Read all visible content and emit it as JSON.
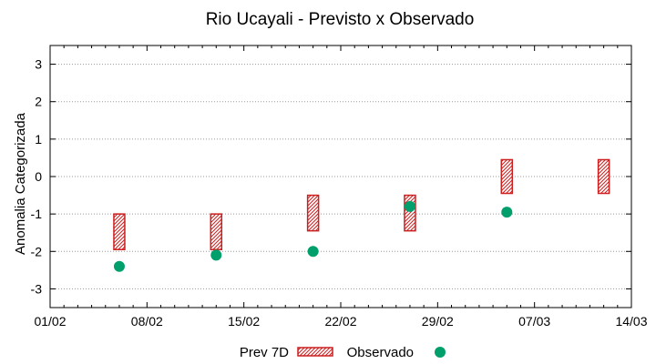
{
  "chart_data": {
    "type": "scatter",
    "title": "Rio Ucayali - Previsto x Observado",
    "xlabel": "",
    "ylabel": "Anomalia Categorizada",
    "x_ticks": [
      "01/02",
      "08/02",
      "15/02",
      "22/02",
      "29/02",
      "07/03",
      "14/03"
    ],
    "x_tick_days": [
      0,
      7,
      14,
      21,
      28,
      35,
      42
    ],
    "xlim_days": [
      0,
      42
    ],
    "y_ticks": [
      "3",
      "2",
      "1",
      "0",
      "-1",
      "-2",
      "-3"
    ],
    "y_tick_values": [
      3,
      2,
      1,
      0,
      -1,
      -2,
      -3
    ],
    "ylim": [
      -3.5,
      3.5
    ],
    "grid": true,
    "legend_position": "bottom-center",
    "series": [
      {
        "name": "Prev 7D",
        "kind": "range",
        "color": "#cc1f1f",
        "points": [
          {
            "x": 5,
            "low": -1.95,
            "high": -1.0
          },
          {
            "x": 12,
            "low": -1.95,
            "high": -1.0
          },
          {
            "x": 19,
            "low": -1.45,
            "high": -0.5
          },
          {
            "x": 26,
            "low": -1.45,
            "high": -0.5
          },
          {
            "x": 33,
            "low": -0.45,
            "high": 0.45
          },
          {
            "x": 40,
            "low": -0.45,
            "high": 0.45
          }
        ]
      },
      {
        "name": "Observado",
        "kind": "point",
        "color": "#009f6b",
        "points": [
          {
            "x": 5,
            "y": -2.4
          },
          {
            "x": 12,
            "y": -2.1
          },
          {
            "x": 19,
            "y": -2.0
          },
          {
            "x": 26,
            "y": -0.8
          },
          {
            "x": 33,
            "y": -0.95
          }
        ]
      }
    ]
  }
}
